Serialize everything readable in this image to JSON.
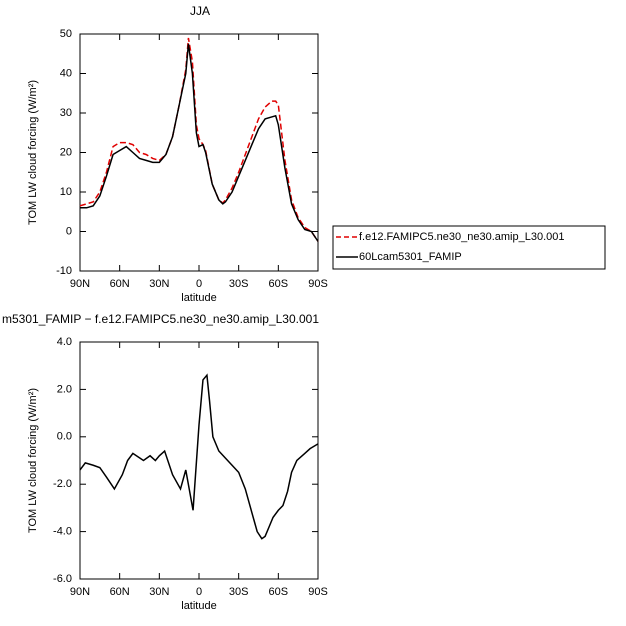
{
  "chart_data": [
    {
      "type": "line",
      "title": "JJA",
      "xlabel": "latitude",
      "ylabel": "TOM  LW cloud forcing (W/m²)",
      "x": [
        90,
        85,
        80,
        75,
        70,
        65,
        60,
        55,
        50,
        45,
        40,
        35,
        30,
        25,
        20,
        15,
        10,
        8,
        5,
        2,
        0,
        -3,
        -5,
        -10,
        -15,
        -18,
        -20,
        -25,
        -30,
        -35,
        -40,
        -45,
        -50,
        -55,
        -58,
        -60,
        -65,
        -70,
        -75,
        -80,
        -85,
        -90
      ],
      "series": [
        {
          "name": "f.e12.FAMIPC5.ne30_ne30.amip_L30.001",
          "color": "#e00000",
          "dash": "dashed",
          "values": [
            6.5,
            7,
            7.5,
            10,
            15,
            21.5,
            22.5,
            22.5,
            22,
            20,
            19.5,
            18.5,
            18,
            19.5,
            24,
            32,
            41,
            49,
            43,
            27,
            23.5,
            22,
            20.5,
            12,
            8,
            7.2,
            8,
            11,
            15,
            19.5,
            24,
            28.5,
            31.5,
            33,
            33,
            32,
            18,
            8,
            3.5,
            1,
            0,
            -2.5
          ]
        },
        {
          "name": "60Lcam5301_FAMIP",
          "color": "#000000",
          "dash": "solid",
          "values": [
            6,
            6,
            6.5,
            9,
            14,
            19.5,
            20.5,
            21.5,
            20,
            18.5,
            18,
            17.5,
            17.5,
            19.5,
            24,
            32,
            40,
            47.5,
            40,
            25,
            21.5,
            22,
            20,
            12,
            8,
            7,
            7.5,
            10,
            14,
            18,
            22,
            26,
            28.5,
            29,
            29.3,
            27,
            16,
            7,
            3,
            0.5,
            0,
            -2.5
          ]
        }
      ],
      "xlim": [
        90,
        -90
      ],
      "xticks": [
        {
          "value": 90,
          "label": "90N"
        },
        {
          "value": 60,
          "label": "60N"
        },
        {
          "value": 30,
          "label": "30N"
        },
        0,
        {
          "value": -30,
          "label": "30S"
        },
        {
          "value": -60,
          "label": "60S"
        },
        {
          "value": -90,
          "label": "90S"
        }
      ],
      "ylim": [
        -10,
        50
      ],
      "yticks": [
        -10,
        0,
        10,
        20,
        30,
        40,
        50
      ],
      "legend": "outside-right"
    },
    {
      "type": "line",
      "title": "m5301_FAMIP − f.e12.FAMIPC5.ne30_ne30.amip_L30.001",
      "xlabel": "latitude",
      "ylabel": "TOM  LW cloud forcing (W/m²)",
      "x": [
        90,
        86,
        80,
        75,
        70,
        64,
        58,
        54,
        50,
        42,
        37,
        33,
        30,
        26,
        20,
        14,
        10,
        4.5,
        0,
        -3,
        -6,
        -8,
        -10.5,
        -15,
        -20,
        -25,
        -30,
        -35,
        -40,
        -44,
        -47.5,
        -50,
        -53,
        -56,
        -60,
        -63.5,
        -67,
        -70,
        -74,
        -80,
        -84,
        -87,
        -90
      ],
      "series": [
        {
          "color": "#000000",
          "dash": "solid",
          "values": [
            -1.4,
            -1.1,
            -1.2,
            -1.3,
            -1.7,
            -2.2,
            -1.6,
            -1.0,
            -0.7,
            -1.0,
            -0.8,
            -1.0,
            -0.8,
            -0.6,
            -1.6,
            -2.2,
            -1.4,
            -3.1,
            0.5,
            2.4,
            2.6,
            1.5,
            0,
            -0.6,
            -0.9,
            -1.2,
            -1.5,
            -2.2,
            -3.2,
            -4.0,
            -4.3,
            -4.2,
            -3.8,
            -3.4,
            -3.1,
            -2.9,
            -2.3,
            -1.5,
            -1.0,
            -0.7,
            -0.5,
            -0.4,
            -0.3
          ]
        }
      ],
      "xlim": [
        90,
        -90
      ],
      "xticks": [
        {
          "value": 90,
          "label": "90N"
        },
        {
          "value": 60,
          "label": "60N"
        },
        {
          "value": 30,
          "label": "30N"
        },
        0,
        {
          "value": -30,
          "label": "30S"
        },
        {
          "value": -60,
          "label": "60S"
        },
        {
          "value": -90,
          "label": "90S"
        }
      ],
      "ylim": [
        -6,
        4
      ],
      "yticks": [
        {
          "value": -6,
          "label": "-6.0"
        },
        {
          "value": -4,
          "label": "-4.0"
        },
        {
          "value": -2,
          "label": "-2.0"
        },
        {
          "value": 0,
          "label": "0.0"
        },
        {
          "value": 2,
          "label": "2.0"
        },
        {
          "value": 4,
          "label": "4.0"
        }
      ]
    }
  ]
}
